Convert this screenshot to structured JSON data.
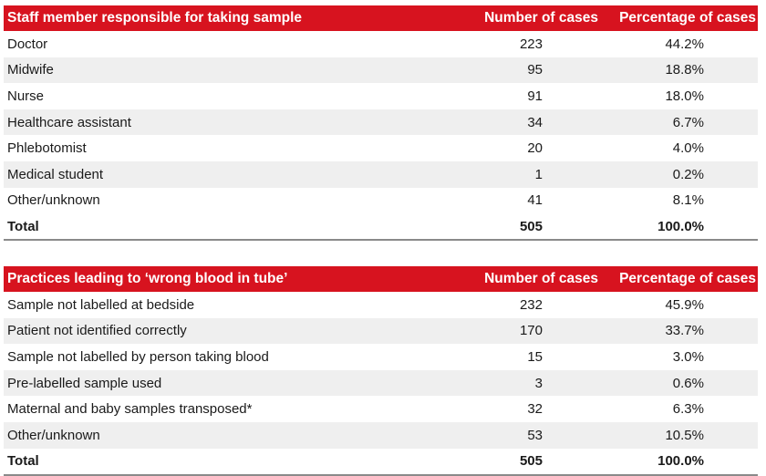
{
  "table1": {
    "headers": [
      "Staff member responsible for taking sample",
      "Number of cases",
      "Percentage of cases"
    ],
    "rows": [
      [
        "Doctor",
        "223",
        "44.2%"
      ],
      [
        "Midwife",
        "95",
        "18.8%"
      ],
      [
        "Nurse",
        "91",
        "18.0%"
      ],
      [
        "Healthcare assistant",
        "34",
        "6.7%"
      ],
      [
        "Phlebotomist",
        "20",
        "4.0%"
      ],
      [
        "Medical student",
        "1",
        "0.2%"
      ],
      [
        "Other/unknown",
        "41",
        "8.1%"
      ]
    ],
    "total": [
      "Total",
      "505",
      "100.0%"
    ]
  },
  "table2": {
    "headers": [
      "Practices leading to ‘wrong blood in tube’",
      "Number of cases",
      "Percentage of cases"
    ],
    "rows": [
      [
        "Sample not labelled at bedside",
        "232",
        "45.9%"
      ],
      [
        "Patient not identified correctly",
        "170",
        "33.7%"
      ],
      [
        "Sample not labelled by person taking blood",
        "15",
        "3.0%"
      ],
      [
        "Pre-labelled sample used",
        "3",
        "0.6%"
      ],
      [
        "Maternal and baby samples transposed*",
        "32",
        "6.3%"
      ],
      [
        "Other/unknown",
        "53",
        "10.5%"
      ]
    ],
    "total": [
      "Total",
      "505",
      "100.0%"
    ]
  },
  "colors": {
    "header_red": "#d7131f",
    "row_stripe": "#efefef",
    "rule": "#8a8a8a"
  }
}
